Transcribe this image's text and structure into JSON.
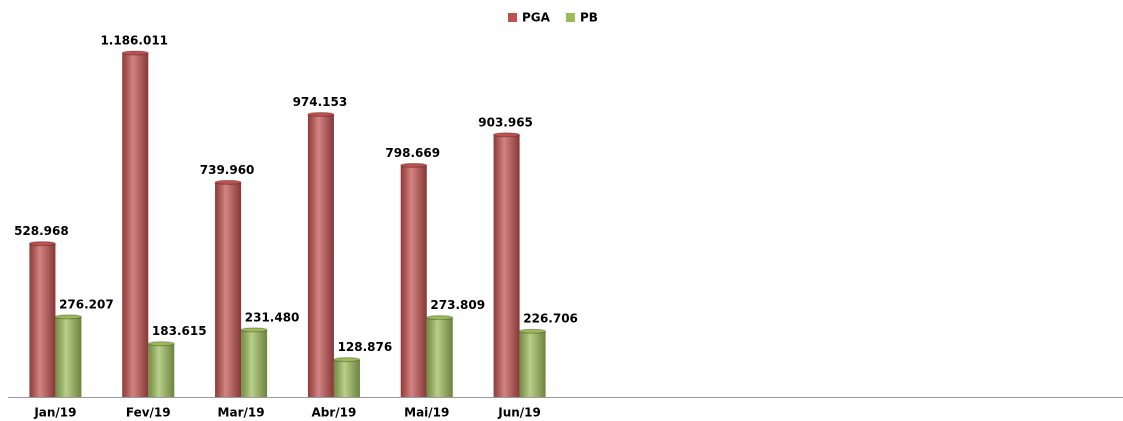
{
  "chart_data": {
    "type": "bar",
    "categories": [
      "Jan/19",
      "Fev/19",
      "Mar/19",
      "Abr/19",
      "Mai/19",
      "Jun/19",
      null,
      null,
      null,
      null,
      null,
      null
    ],
    "series": [
      {
        "name": "PGA",
        "color": "#c0504d",
        "values": [
          528968,
          1186011,
          739960,
          974153,
          798669,
          903965,
          null,
          null,
          null,
          null,
          null,
          null
        ],
        "value_labels": [
          "528.968",
          "1.186.011",
          "739.960",
          "974.153",
          "798.669",
          "903.965",
          null,
          null,
          null,
          null,
          null,
          null
        ]
      },
      {
        "name": "PB",
        "color": "#9bbb59",
        "values": [
          276207,
          183615,
          231480,
          128876,
          273809,
          226706,
          null,
          null,
          null,
          null,
          null,
          null
        ],
        "value_labels": [
          "276.207",
          "183.615",
          "231.480",
          "128.876",
          "273.809",
          "226.706",
          null,
          null,
          null,
          null,
          null,
          null
        ]
      }
    ],
    "legend": "top"
  }
}
